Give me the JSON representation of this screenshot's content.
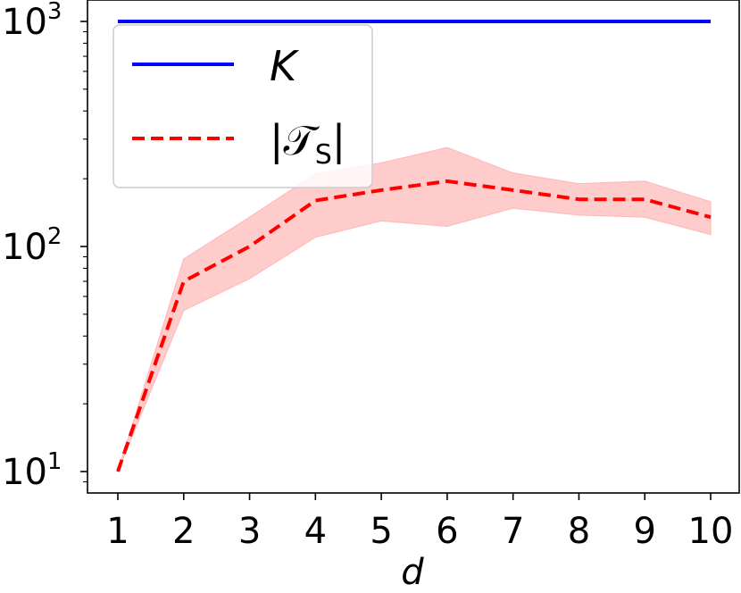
{
  "chart_data": {
    "type": "line",
    "xlabel": "d",
    "ylabel": "",
    "x": [
      1,
      2,
      3,
      4,
      5,
      6,
      7,
      8,
      9,
      10
    ],
    "xticks": [
      "1",
      "2",
      "3",
      "4",
      "5",
      "6",
      "7",
      "8",
      "9",
      "10"
    ],
    "yscale": "log",
    "ylim": [
      8.4,
      1100
    ],
    "yticks": [
      {
        "value": 10,
        "base": "10",
        "exp": "1"
      },
      {
        "value": 100,
        "base": "10",
        "exp": "2"
      },
      {
        "value": 1000,
        "base": "10",
        "exp": "3"
      }
    ],
    "grid": false,
    "legend": "top-left",
    "series": [
      {
        "name": "K",
        "color": "#0000ff",
        "style": "solid",
        "values": [
          1000,
          1000,
          1000,
          1000,
          1000,
          1000,
          1000,
          1000,
          1000,
          1000
        ]
      },
      {
        "name": "|T_S|",
        "legend_main": "|𝒯",
        "legend_sub": "S",
        "legend_end": "|",
        "color": "#ff0000",
        "style": "dashed",
        "values": [
          10,
          70,
          100,
          160,
          178,
          195,
          178,
          162,
          162,
          135
        ],
        "band_lower": [
          10,
          52,
          72,
          110,
          130,
          123,
          148,
          138,
          135,
          113
        ],
        "band_upper": [
          10,
          88,
          135,
          210,
          235,
          275,
          212,
          190,
          195,
          158
        ],
        "band_color": "#ffbbbb"
      }
    ]
  }
}
